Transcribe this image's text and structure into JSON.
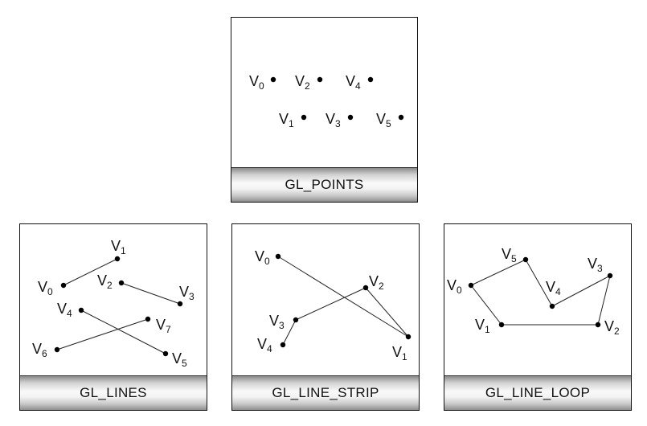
{
  "panels": [
    {
      "id": "points",
      "caption": "GL_POINTS",
      "connect": "none",
      "vertices": [
        {
          "label": "V",
          "sub": "0"
        },
        {
          "label": "V",
          "sub": "1"
        },
        {
          "label": "V",
          "sub": "2"
        },
        {
          "label": "V",
          "sub": "3"
        },
        {
          "label": "V",
          "sub": "4"
        },
        {
          "label": "V",
          "sub": "5"
        }
      ]
    },
    {
      "id": "lines",
      "caption": "GL_LINES",
      "connect": "pairs",
      "vertices": [
        {
          "label": "V",
          "sub": "0"
        },
        {
          "label": "V",
          "sub": "1"
        },
        {
          "label": "V",
          "sub": "2"
        },
        {
          "label": "V",
          "sub": "3"
        },
        {
          "label": "V",
          "sub": "4"
        },
        {
          "label": "V",
          "sub": "5"
        },
        {
          "label": "V",
          "sub": "6"
        },
        {
          "label": "V",
          "sub": "7"
        }
      ]
    },
    {
      "id": "line_strip",
      "caption": "GL_LINE_STRIP",
      "connect": "strip",
      "vertices": [
        {
          "label": "V",
          "sub": "0"
        },
        {
          "label": "V",
          "sub": "1"
        },
        {
          "label": "V",
          "sub": "2"
        },
        {
          "label": "V",
          "sub": "3"
        },
        {
          "label": "V",
          "sub": "4"
        }
      ]
    },
    {
      "id": "line_loop",
      "caption": "GL_LINE_LOOP",
      "connect": "loop",
      "vertices": [
        {
          "label": "V",
          "sub": "0"
        },
        {
          "label": "V",
          "sub": "1"
        },
        {
          "label": "V",
          "sub": "2"
        },
        {
          "label": "V",
          "sub": "3"
        },
        {
          "label": "V",
          "sub": "4"
        },
        {
          "label": "V",
          "sub": "5"
        }
      ]
    }
  ]
}
